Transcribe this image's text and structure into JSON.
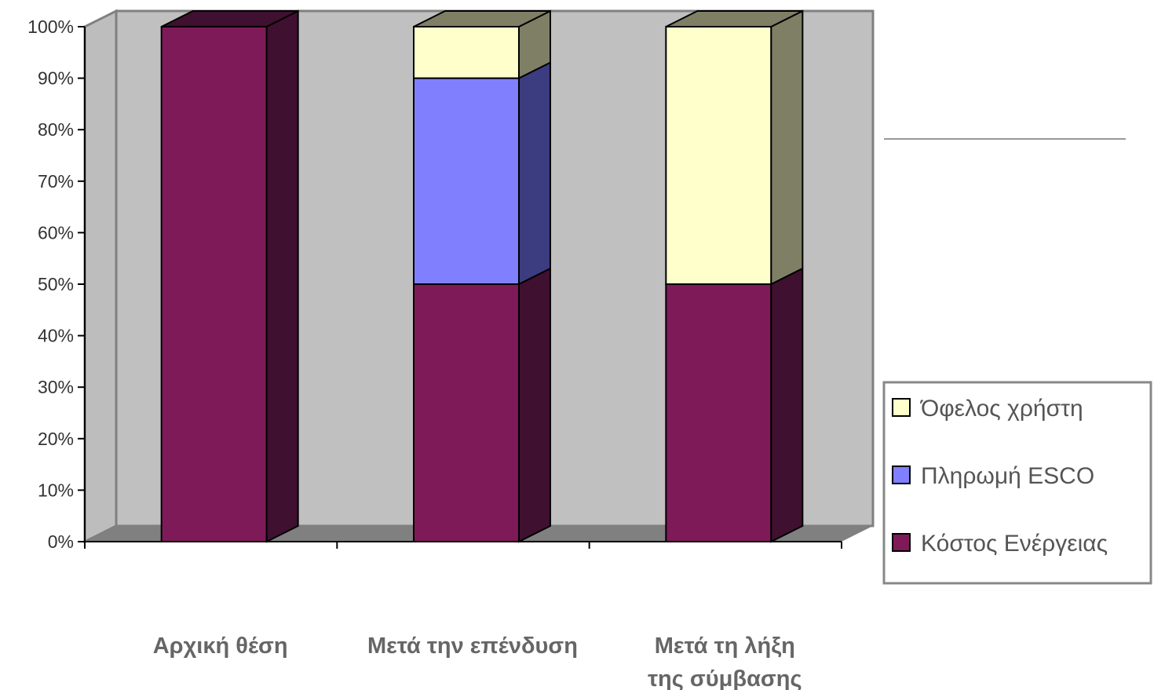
{
  "chart_data": {
    "type": "bar",
    "stacked": true,
    "three_d": true,
    "categories": [
      [
        "Αρχική θέση"
      ],
      [
        "Μετά την επένδυση"
      ],
      [
        "Μετά τη λήξη",
        "της σύμβασης"
      ]
    ],
    "series": [
      {
        "name": "Κόστος Ενέργειας",
        "values": [
          100,
          50,
          50
        ],
        "color": "#7f1a58",
        "side_color": "#401030"
      },
      {
        "name": "Πληρωμή ESCO",
        "values": [
          0,
          40,
          0
        ],
        "color": "#8080ff",
        "side_color": "#3c3c80"
      },
      {
        "name": "Όφελος χρήστη",
        "values": [
          0,
          10,
          50
        ],
        "color": "#ffffcc",
        "side_color": "#7f7f66"
      }
    ],
    "y_ticks": [
      "0%",
      "10%",
      "20%",
      "30%",
      "40%",
      "50%",
      "60%",
      "70%",
      "80%",
      "90%",
      "100%"
    ],
    "ylim": [
      0,
      100
    ],
    "legend_position": "right",
    "legend_order": [
      "Όφελος χρήστη",
      "Πληρωμή ESCO",
      "Κόστος Ενέργειας"
    ],
    "wall_color": "#c0c0c0",
    "gridlines": false
  }
}
